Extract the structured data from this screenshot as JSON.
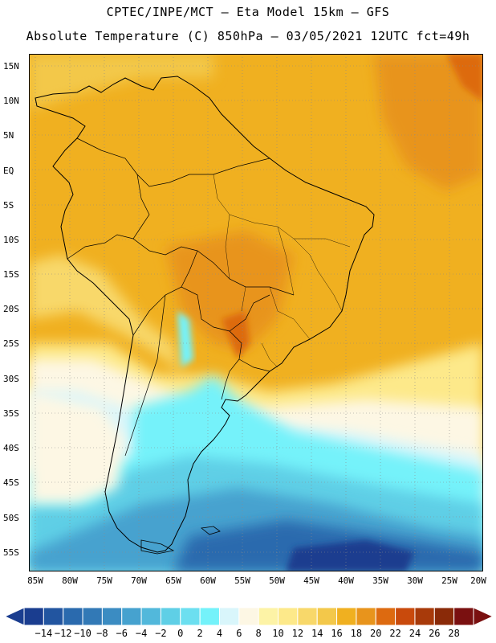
{
  "header": {
    "line1": "CPTEC/INPE/MCT –  Eta Model 15km – GFS",
    "line2": "Absolute Temperature (C) 850hPa – 03/05/2021 12UTC fct=49h"
  },
  "map": {
    "lat_labels": [
      "15N",
      "10N",
      "5N",
      "EQ",
      "5S",
      "10S",
      "15S",
      "20S",
      "25S",
      "30S",
      "35S",
      "40S",
      "45S",
      "50S",
      "55S"
    ],
    "lon_labels": [
      "85W",
      "80W",
      "75W",
      "70W",
      "65W",
      "60W",
      "55W",
      "50W",
      "45W",
      "40W",
      "35W",
      "30W",
      "25W",
      "20W"
    ],
    "region": "South America",
    "variable": "850hPa temperature"
  },
  "colorbar": {
    "labels": [
      "-14",
      "-12",
      "-10",
      "-8",
      "-6",
      "-4",
      "-2",
      "0",
      "2",
      "4",
      "6",
      "8",
      "10",
      "12",
      "14",
      "16",
      "18",
      "20",
      "22",
      "24",
      "26",
      "28"
    ],
    "colors": [
      "#1a3d8f",
      "#2255a0",
      "#2a6aae",
      "#3279b6",
      "#3b8cc2",
      "#46a2cf",
      "#52b8db",
      "#5fcfe6",
      "#6cdff0",
      "#74f2fa",
      "#d9f6fb",
      "#fdf7e4",
      "#fdf3a6",
      "#fde98a",
      "#f8d86a",
      "#f3c84a",
      "#f0b020",
      "#e8941c",
      "#dd6a10",
      "#c94a0c",
      "#a83a0a",
      "#8a2a08",
      "#7a1010"
    ]
  }
}
